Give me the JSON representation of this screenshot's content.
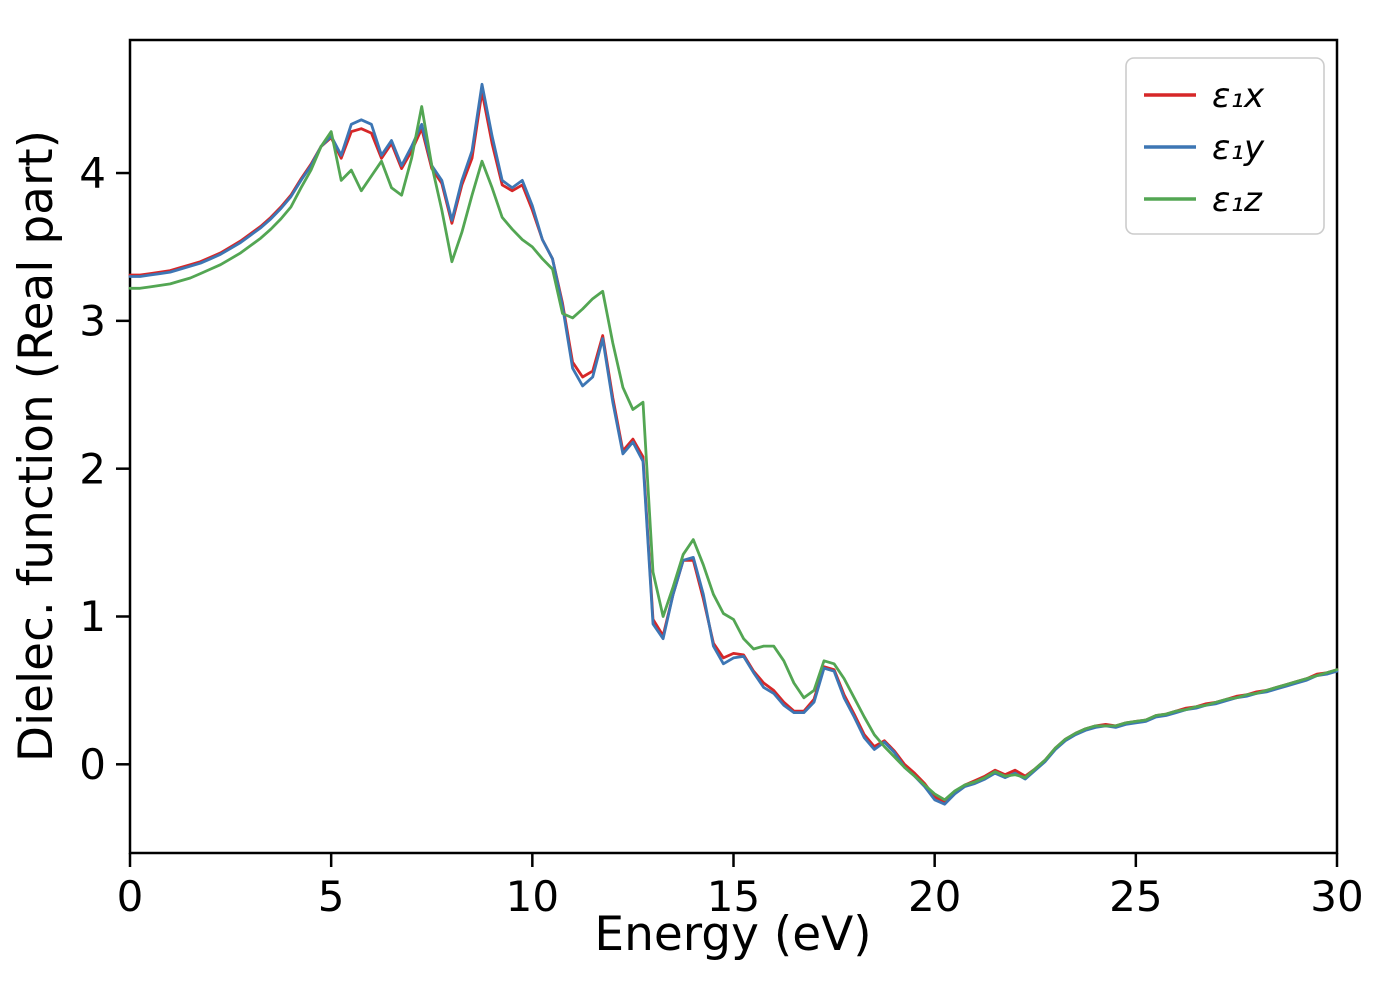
{
  "figure": {
    "background": "#ffffff"
  },
  "chart_data": {
    "type": "line",
    "title": "",
    "xlabel": "Energy (eV)",
    "ylabel": "Dielec. function (Real part)",
    "xlim": [
      0,
      30
    ],
    "ylim": [
      -0.6,
      4.9
    ],
    "x_ticks": [
      0,
      5,
      10,
      15,
      20,
      25,
      30
    ],
    "y_ticks": [
      0,
      1,
      2,
      3,
      4
    ],
    "grid": false,
    "legend_position": "upper right",
    "x": [
      0,
      0.25,
      0.5,
      0.75,
      1,
      1.25,
      1.5,
      1.75,
      2,
      2.25,
      2.5,
      2.75,
      3,
      3.25,
      3.5,
      3.75,
      4,
      4.25,
      4.5,
      4.75,
      5,
      5.25,
      5.5,
      5.75,
      6,
      6.25,
      6.5,
      6.75,
      7,
      7.25,
      7.5,
      7.75,
      8,
      8.25,
      8.5,
      8.75,
      9,
      9.25,
      9.5,
      9.75,
      10,
      10.25,
      10.5,
      10.75,
      11,
      11.25,
      11.5,
      11.75,
      12,
      12.25,
      12.5,
      12.75,
      13,
      13.25,
      13.5,
      13.75,
      14,
      14.25,
      14.5,
      14.75,
      15,
      15.25,
      15.5,
      15.75,
      16,
      16.25,
      16.5,
      16.75,
      17,
      17.25,
      17.5,
      17.75,
      18,
      18.25,
      18.5,
      18.75,
      19,
      19.25,
      19.5,
      19.75,
      20,
      20.25,
      20.5,
      20.75,
      21,
      21.25,
      21.5,
      21.75,
      22,
      22.25,
      22.5,
      22.75,
      23,
      23.25,
      23.5,
      23.75,
      24,
      24.25,
      24.5,
      24.75,
      25,
      25.25,
      25.5,
      25.75,
      26,
      26.25,
      26.5,
      26.75,
      27,
      27.25,
      27.5,
      27.75,
      28,
      28.25,
      28.5,
      28.75,
      29,
      29.25,
      29.5,
      29.75,
      30
    ],
    "series": [
      {
        "name": "ε₁x",
        "color": "#d62728",
        "values": [
          3.31,
          3.31,
          3.32,
          3.33,
          3.34,
          3.36,
          3.38,
          3.4,
          3.43,
          3.46,
          3.5,
          3.54,
          3.59,
          3.64,
          3.7,
          3.77,
          3.85,
          3.96,
          4.06,
          4.18,
          4.24,
          4.1,
          4.28,
          4.3,
          4.27,
          4.1,
          4.2,
          4.03,
          4.15,
          4.3,
          4.03,
          3.93,
          3.66,
          3.92,
          4.1,
          4.55,
          4.2,
          3.92,
          3.88,
          3.92,
          3.75,
          3.55,
          3.42,
          3.12,
          2.72,
          2.62,
          2.66,
          2.9,
          2.48,
          2.12,
          2.2,
          2.08,
          0.98,
          0.87,
          1.15,
          1.38,
          1.38,
          1.12,
          0.82,
          0.72,
          0.75,
          0.74,
          0.63,
          0.55,
          0.5,
          0.42,
          0.36,
          0.36,
          0.44,
          0.66,
          0.64,
          0.47,
          0.34,
          0.2,
          0.12,
          0.16,
          0.09,
          0.0,
          -0.06,
          -0.13,
          -0.22,
          -0.26,
          -0.19,
          -0.14,
          -0.11,
          -0.08,
          -0.04,
          -0.07,
          -0.04,
          -0.08,
          -0.03,
          0.03,
          0.11,
          0.17,
          0.21,
          0.24,
          0.26,
          0.27,
          0.26,
          0.28,
          0.29,
          0.3,
          0.33,
          0.34,
          0.36,
          0.38,
          0.39,
          0.41,
          0.42,
          0.44,
          0.46,
          0.47,
          0.49,
          0.5,
          0.52,
          0.54,
          0.56,
          0.58,
          0.61,
          0.62,
          0.64
        ]
      },
      {
        "name": "ε₁y",
        "color": "#3d76b4",
        "values": [
          3.3,
          3.3,
          3.31,
          3.32,
          3.33,
          3.35,
          3.37,
          3.39,
          3.42,
          3.45,
          3.49,
          3.53,
          3.58,
          3.63,
          3.69,
          3.76,
          3.84,
          3.95,
          4.05,
          4.18,
          4.25,
          4.12,
          4.33,
          4.36,
          4.33,
          4.12,
          4.22,
          4.05,
          4.18,
          4.33,
          4.05,
          3.95,
          3.68,
          3.95,
          4.15,
          4.6,
          4.25,
          3.95,
          3.9,
          3.95,
          3.78,
          3.55,
          3.42,
          3.1,
          2.68,
          2.56,
          2.62,
          2.88,
          2.45,
          2.1,
          2.18,
          2.05,
          0.95,
          0.85,
          1.15,
          1.38,
          1.4,
          1.15,
          0.8,
          0.68,
          0.72,
          0.73,
          0.62,
          0.52,
          0.48,
          0.4,
          0.35,
          0.35,
          0.42,
          0.65,
          0.63,
          0.45,
          0.32,
          0.18,
          0.1,
          0.15,
          0.08,
          -0.02,
          -0.08,
          -0.15,
          -0.24,
          -0.27,
          -0.2,
          -0.15,
          -0.13,
          -0.1,
          -0.06,
          -0.09,
          -0.06,
          -0.1,
          -0.04,
          0.02,
          0.1,
          0.16,
          0.2,
          0.23,
          0.25,
          0.26,
          0.25,
          0.27,
          0.28,
          0.29,
          0.32,
          0.33,
          0.35,
          0.37,
          0.38,
          0.4,
          0.41,
          0.43,
          0.45,
          0.46,
          0.48,
          0.49,
          0.51,
          0.53,
          0.55,
          0.57,
          0.6,
          0.61,
          0.63
        ]
      },
      {
        "name": "ε₁z",
        "color": "#53a653",
        "values": [
          3.22,
          3.22,
          3.23,
          3.24,
          3.25,
          3.27,
          3.29,
          3.32,
          3.35,
          3.38,
          3.42,
          3.46,
          3.51,
          3.56,
          3.62,
          3.69,
          3.77,
          3.9,
          4.02,
          4.18,
          4.28,
          3.95,
          4.02,
          3.88,
          3.98,
          4.08,
          3.9,
          3.85,
          4.1,
          4.45,
          4.05,
          3.75,
          3.4,
          3.6,
          3.85,
          4.08,
          3.9,
          3.7,
          3.62,
          3.55,
          3.5,
          3.42,
          3.35,
          3.05,
          3.02,
          3.08,
          3.15,
          3.2,
          2.85,
          2.55,
          2.4,
          2.45,
          1.3,
          1.0,
          1.2,
          1.42,
          1.52,
          1.35,
          1.15,
          1.02,
          0.98,
          0.85,
          0.78,
          0.8,
          0.8,
          0.7,
          0.55,
          0.45,
          0.5,
          0.7,
          0.68,
          0.58,
          0.45,
          0.32,
          0.2,
          0.12,
          0.05,
          -0.02,
          -0.08,
          -0.14,
          -0.2,
          -0.24,
          -0.18,
          -0.14,
          -0.12,
          -0.09,
          -0.05,
          -0.08,
          -0.07,
          -0.09,
          -0.03,
          0.03,
          0.11,
          0.17,
          0.21,
          0.24,
          0.26,
          0.26,
          0.26,
          0.28,
          0.29,
          0.3,
          0.33,
          0.34,
          0.36,
          0.37,
          0.39,
          0.4,
          0.42,
          0.44,
          0.45,
          0.47,
          0.48,
          0.5,
          0.52,
          0.54,
          0.56,
          0.58,
          0.6,
          0.62,
          0.64
        ]
      }
    ]
  }
}
